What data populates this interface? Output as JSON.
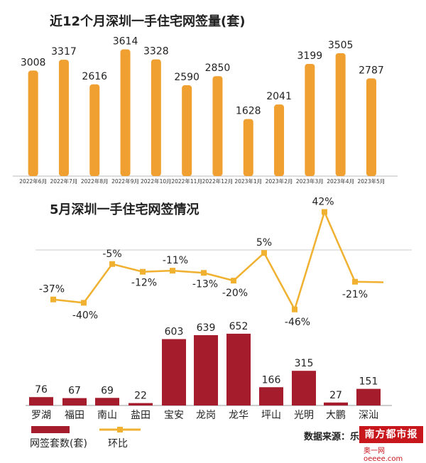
{
  "chart_data": [
    {
      "type": "bar",
      "title": "近12个月深圳一手住宅网签量(套)",
      "categories": [
        "2022年6月",
        "2022年7月",
        "2022年8月",
        "2022年9月",
        "2022年10月",
        "2022年11月",
        "2022年12月",
        "2023年1月",
        "2023年2月",
        "2023年3月",
        "2023年4月",
        "2023年5月"
      ],
      "values": [
        3008,
        3317,
        2616,
        3614,
        3328,
        2590,
        2850,
        1628,
        2041,
        3199,
        3505,
        2787
      ],
      "color": "#f0a030"
    },
    {
      "type": "line",
      "title": "5月深圳一手住宅网签情况",
      "series_name": "环比",
      "categories": [
        "罗湖",
        "福田",
        "南山",
        "盐田",
        "宝安",
        "龙岗",
        "龙华",
        "坪山",
        "光明",
        "大鹏",
        "深汕"
      ],
      "values": [
        "-37%",
        "-40%",
        "-5%",
        "-12%",
        "-11%",
        "-13%",
        "-20%",
        "5%",
        "-46%",
        "42%",
        "-21%"
      ],
      "numeric": [
        -37,
        -40,
        -5,
        -12,
        -11,
        -13,
        -20,
        5,
        -46,
        42,
        -21
      ],
      "color": "#f0b030"
    },
    {
      "type": "bar",
      "series_name": "网签套数(套)",
      "categories": [
        "罗湖",
        "福田",
        "南山",
        "盐田",
        "宝安",
        "龙岗",
        "龙华",
        "坪山",
        "光明",
        "大鹏",
        "深汕"
      ],
      "values": [
        76,
        67,
        69,
        22,
        603,
        639,
        652,
        166,
        315,
        27,
        151
      ],
      "color": "#a51c2c"
    }
  ],
  "legend": {
    "bar_label": "网签套数(套)",
    "line_label": "环比"
  },
  "source": "数据来源：乐有",
  "logo": "南方都市报",
  "logo_sub": "奥一网 oeeee.com"
}
